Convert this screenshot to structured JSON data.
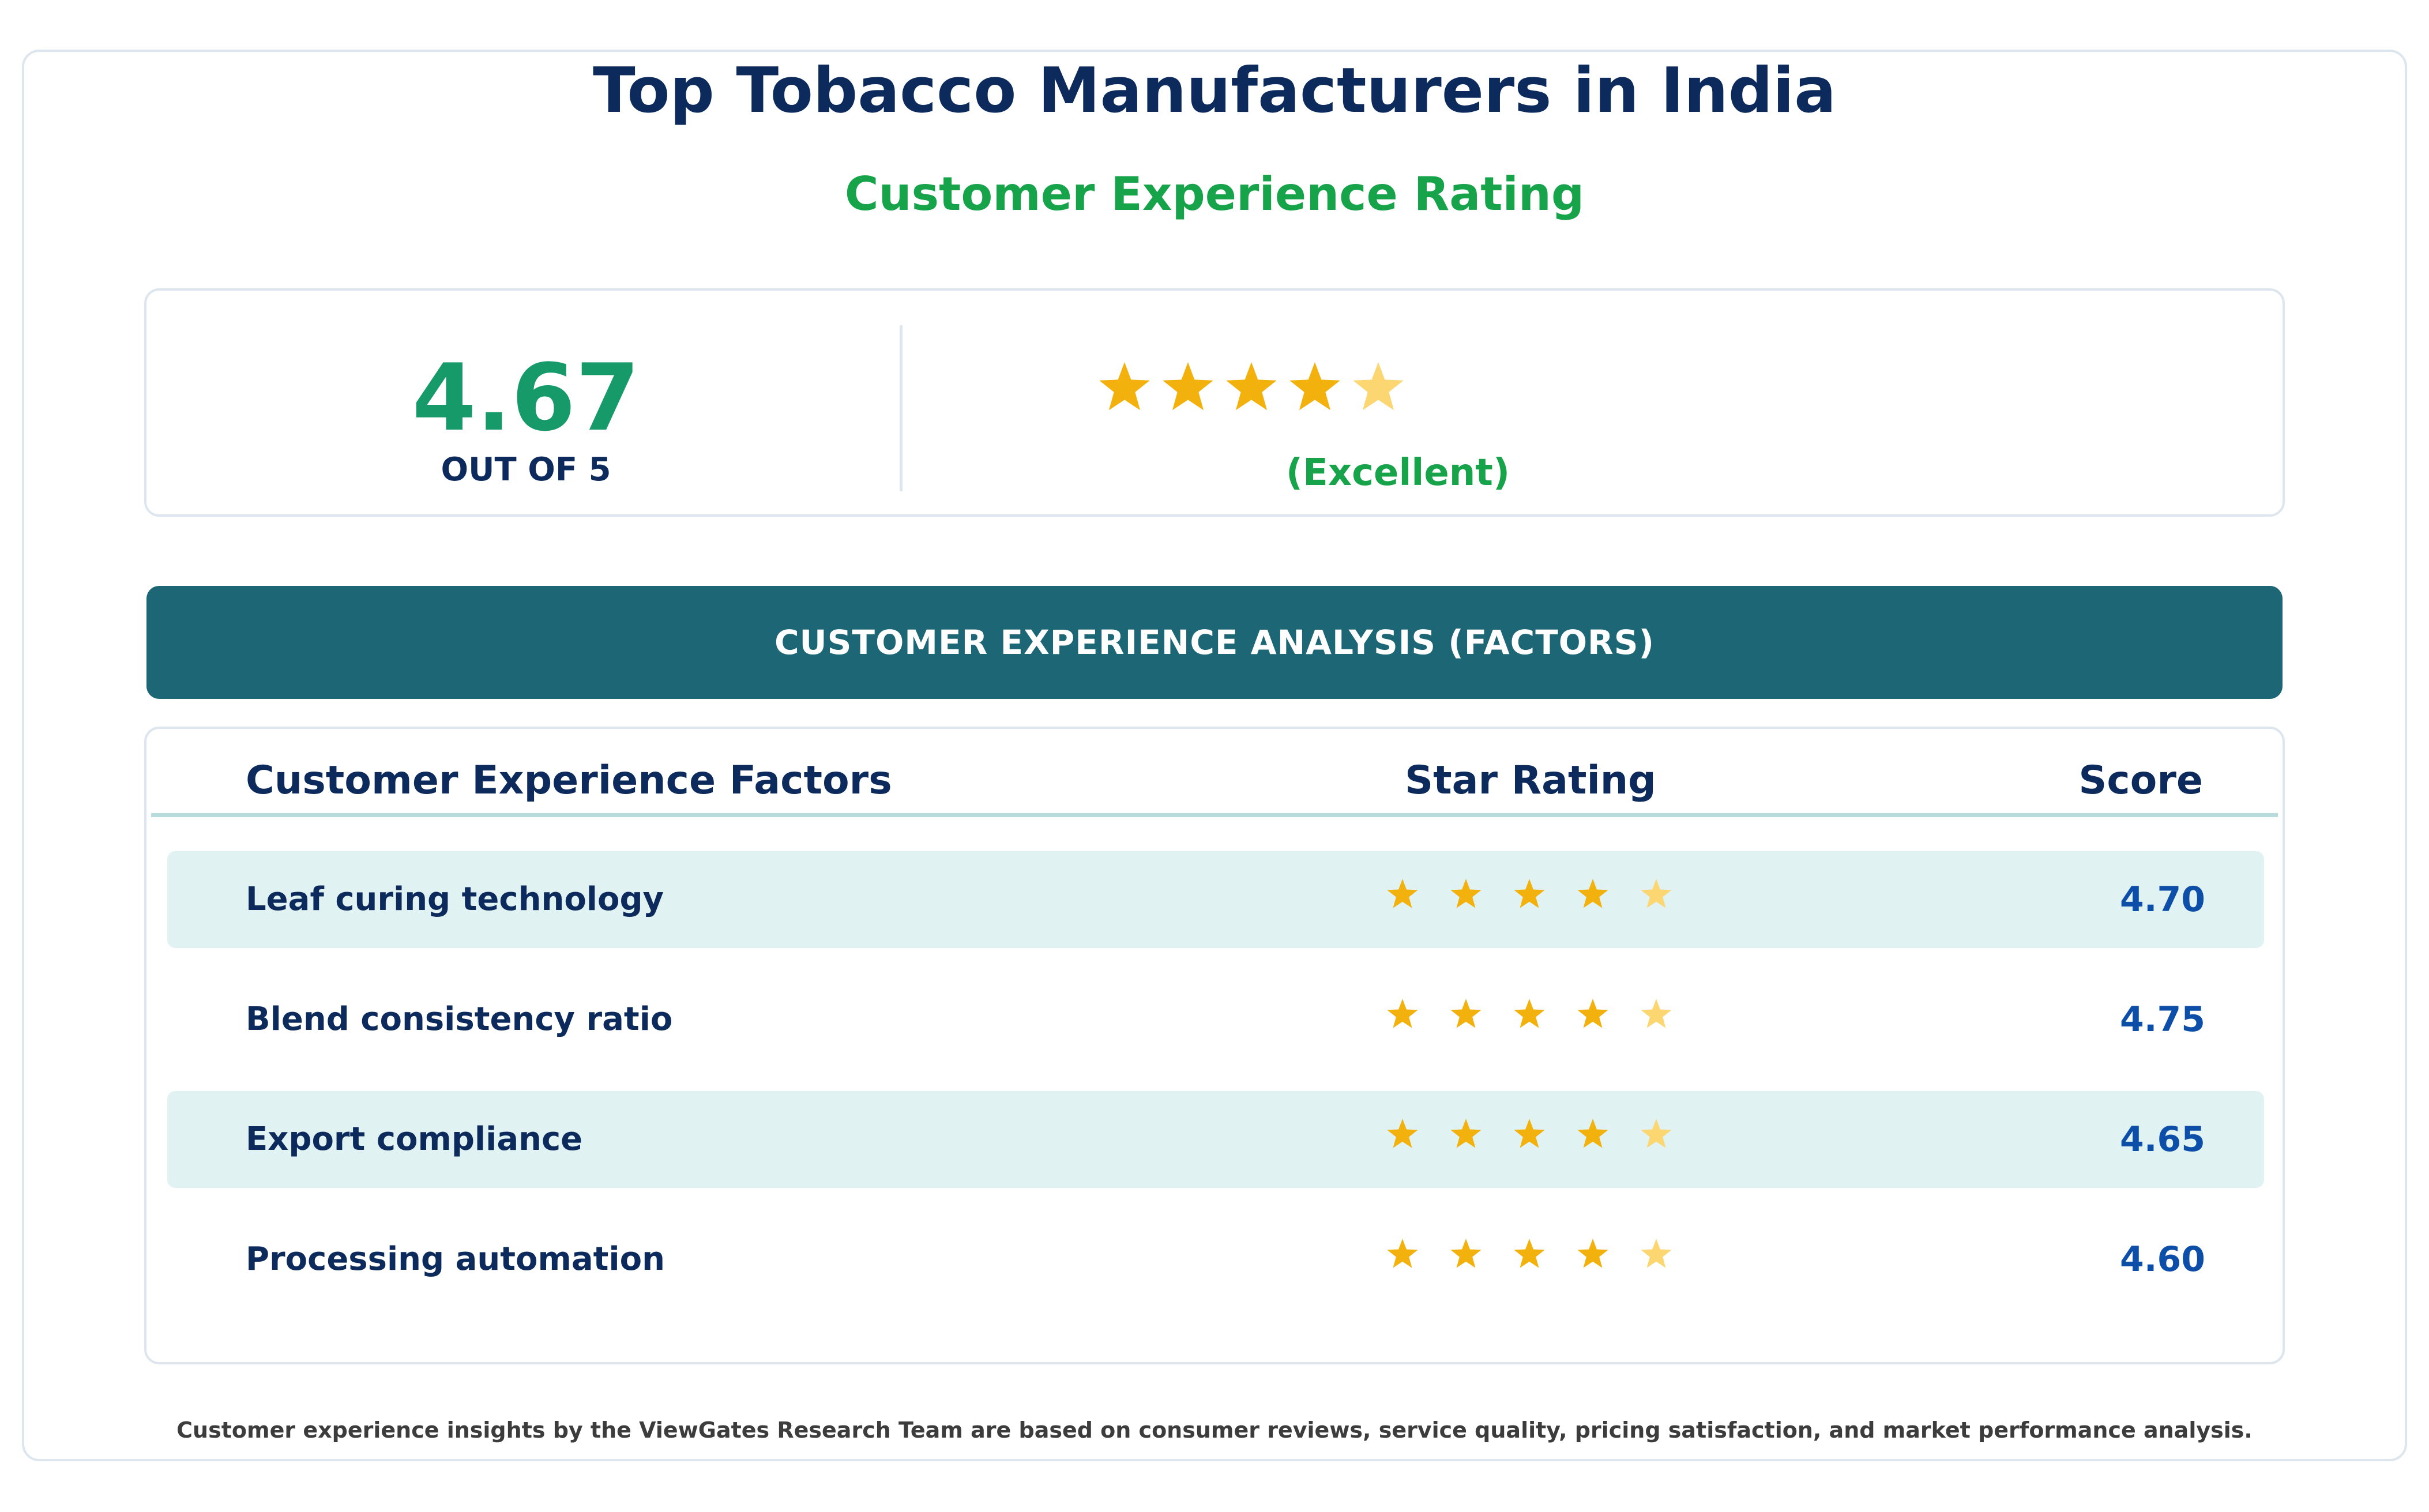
{
  "header": {
    "title": "Top Tobacco Manufacturers in India",
    "subtitle": "Customer Experience Rating"
  },
  "summary": {
    "score": "4.67",
    "scale_label": "OUT OF 5",
    "score_value": 4.67,
    "max_stars": 5,
    "rating_label": "(Excellent)"
  },
  "banner": {
    "label": "CUSTOMER EXPERIENCE ANALYSIS (FACTORS)"
  },
  "table": {
    "columns": {
      "factor": "Customer Experience Factors",
      "stars": "Star Rating",
      "score": "Score"
    }
  },
  "chart_data": {
    "type": "table",
    "categories": [
      "Leaf curing technology",
      "Blend consistency ratio",
      "Export compliance",
      "Processing automation"
    ],
    "values": [
      4.7,
      4.75,
      4.65,
      4.6
    ],
    "display_values": [
      "4.70",
      "4.75",
      "4.65",
      "4.60"
    ],
    "max_stars": 5
  },
  "colors": {
    "star_full": "#f2b10c",
    "star_partial": "#fbd671",
    "title": "#0d2a5c",
    "accent_green": "#16a34a",
    "banner": "#1c6675",
    "score_blue": "#0d4fa8",
    "row_shade": "#e0f2f2"
  },
  "footer": {
    "note": "Customer experience insights by the ViewGates Research Team are based on consumer reviews, service quality, pricing satisfaction, and market performance analysis."
  }
}
